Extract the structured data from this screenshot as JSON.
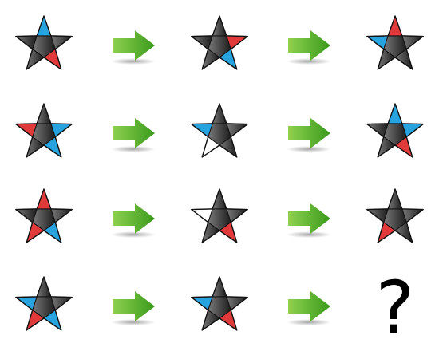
{
  "puzzle": {
    "question_mark": "?",
    "palette": {
      "dark_light": "#7a7a7a",
      "dark_deep": "#1c1c1c",
      "red": "#e03a3a",
      "blue": "#27a3e0",
      "white": "#ffffff",
      "arrow_light": "#8fd14f",
      "arrow_dark": "#3a9a1c"
    },
    "rows": [
      {
        "stars": [
          {
            "top": "blue",
            "right": "dark",
            "lower_right": "red",
            "lower_left": "dark",
            "left": "dark"
          },
          {
            "top": "dark",
            "right": "red",
            "lower_right": "blue",
            "lower_left": "dark",
            "left": "dark"
          },
          {
            "top": "red",
            "right": "dark",
            "lower_right": "dark",
            "lower_left": "dark",
            "left": "blue"
          }
        ]
      },
      {
        "stars": [
          {
            "top": "dark",
            "right": "blue",
            "lower_right": "blue",
            "lower_left": "dark",
            "left": "red"
          },
          {
            "top": "dark",
            "right": "dark",
            "lower_right": "dark",
            "lower_left": "white",
            "left": "blue"
          },
          {
            "top": "blue",
            "right": "blue",
            "lower_right": "red",
            "lower_left": "dark",
            "left": "dark"
          }
        ]
      },
      {
        "stars": [
          {
            "top": "red",
            "right": "dark",
            "lower_right": "blue",
            "lower_left": "red",
            "left": "dark"
          },
          {
            "top": "dark",
            "right": "dark",
            "lower_right": "red",
            "lower_left": "dark",
            "left": "white"
          },
          {
            "top": "dark",
            "right": "dark",
            "lower_right": "dark",
            "lower_left": "red",
            "left": "dark"
          }
        ]
      },
      {
        "stars": [
          {
            "top": "dark",
            "right": "dark",
            "lower_right": "blue",
            "lower_left": "red",
            "left": "blue"
          },
          {
            "top": "dark",
            "right": "dark",
            "lower_right": "red",
            "lower_left": "dark",
            "left": "blue"
          }
        ]
      }
    ]
  }
}
